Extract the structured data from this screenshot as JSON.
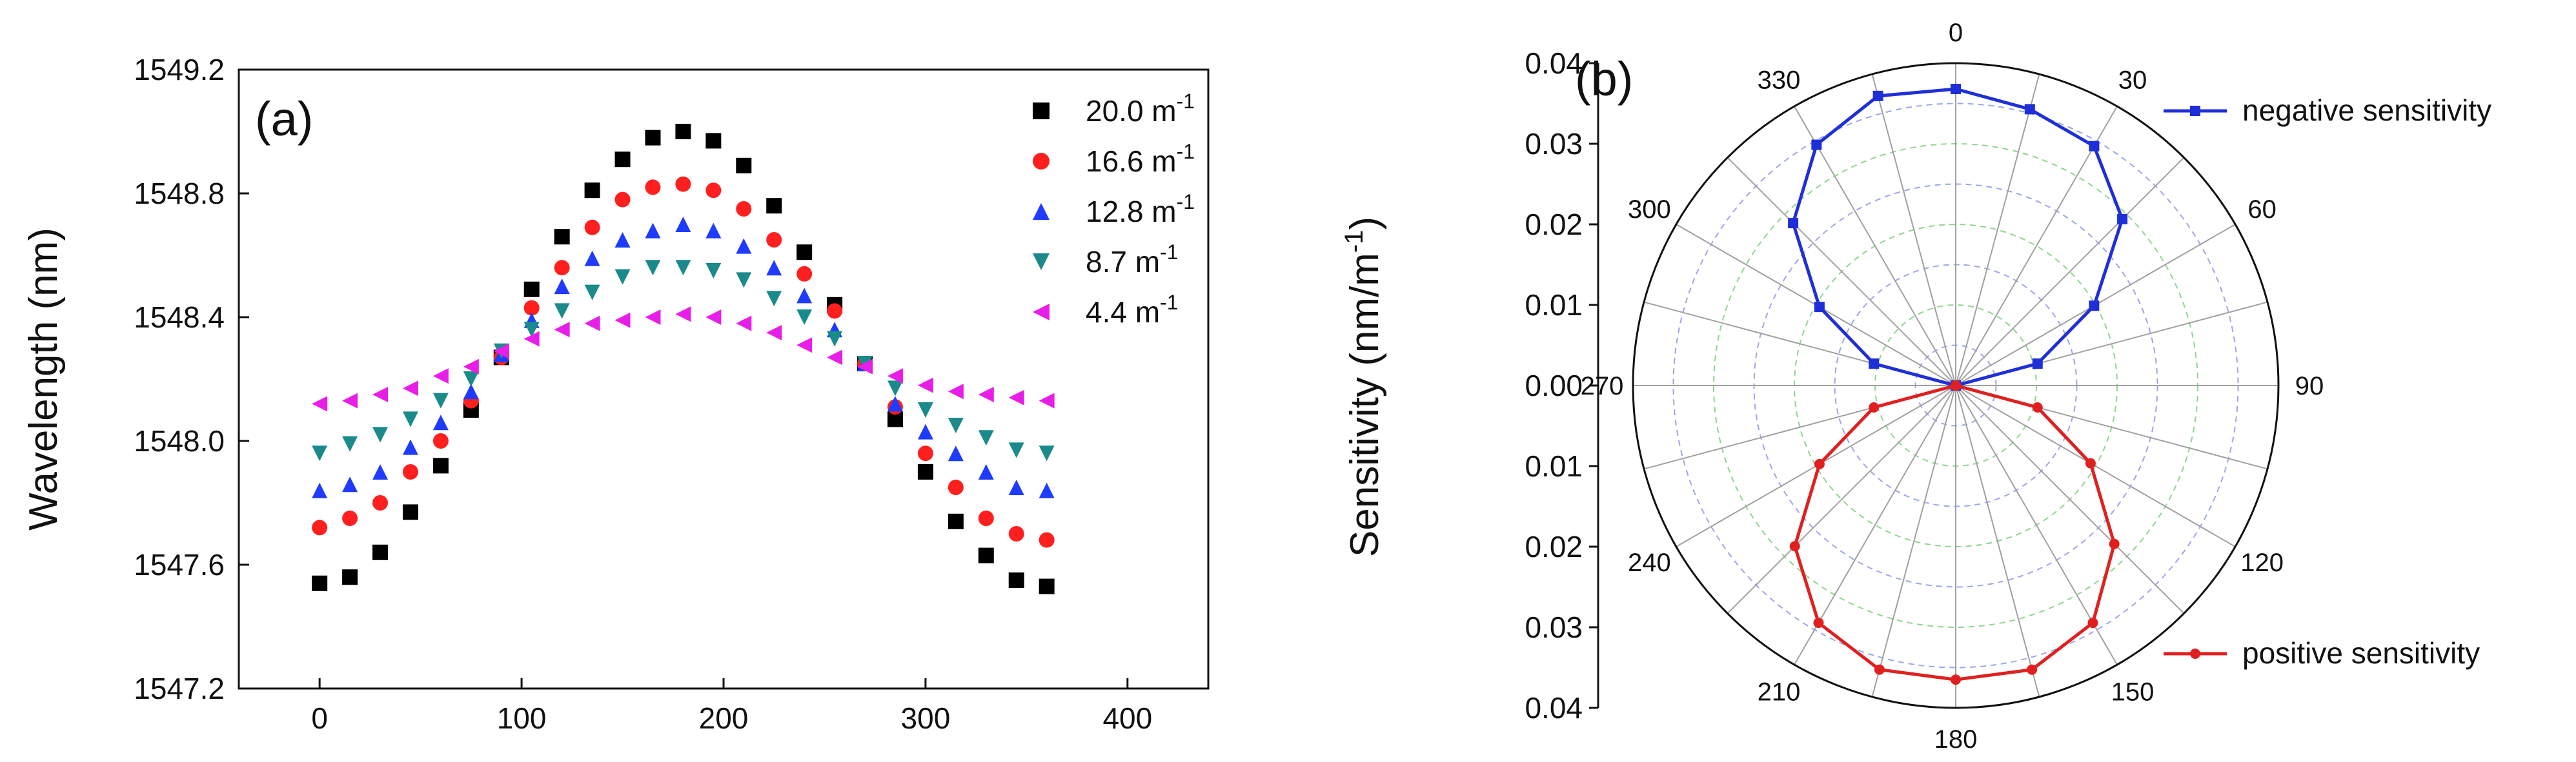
{
  "chart_data": [
    {
      "panel": "(a)",
      "type": "scatter",
      "ylabel": "Wavelength (nm)",
      "xlabel": "",
      "xlim": [
        -40,
        440
      ],
      "ylim": [
        1547.2,
        1549.2
      ],
      "xticks": [
        "0",
        "100",
        "200",
        "300",
        "400"
      ],
      "yticks": [
        "1547.2",
        "1547.6",
        "1548.0",
        "1548.4",
        "1548.8",
        "1549.2"
      ],
      "x": [
        0,
        15,
        30,
        45,
        60,
        75,
        90,
        105,
        120,
        135,
        150,
        165,
        180,
        195,
        210,
        225,
        240,
        255,
        270,
        285,
        300,
        315,
        330,
        345,
        360
      ],
      "series": [
        {
          "name": "20.0 m",
          "sup": "-1",
          "color": "#000000",
          "marker": "square",
          "values": [
            1547.54,
            1547.56,
            1547.64,
            1547.77,
            1547.92,
            1548.1,
            1548.27,
            1548.49,
            1548.66,
            1548.81,
            1548.91,
            1548.98,
            1549.0,
            1548.97,
            1548.89,
            1548.76,
            1548.61,
            1548.44,
            1548.25,
            1548.07,
            1547.9,
            1547.74,
            1547.63,
            1547.55,
            1547.53
          ]
        },
        {
          "name": "16.6 m",
          "sup": "-1",
          "color": "#ff1f1f",
          "marker": "circle",
          "values": [
            1547.72,
            1547.75,
            1547.8,
            1547.9,
            1548.0,
            1548.13,
            1548.27,
            1548.43,
            1548.56,
            1548.69,
            1548.78,
            1548.82,
            1548.83,
            1548.81,
            1548.75,
            1548.65,
            1548.54,
            1548.42,
            1548.25,
            1548.11,
            1547.96,
            1547.85,
            1547.75,
            1547.7,
            1547.68
          ]
        },
        {
          "name": "12.8 m",
          "sup": "-1",
          "color": "#1f3bff",
          "marker": "triangle-up",
          "values": [
            1547.84,
            1547.86,
            1547.9,
            1547.98,
            1548.06,
            1548.16,
            1548.28,
            1548.39,
            1548.5,
            1548.59,
            1548.65,
            1548.68,
            1548.7,
            1548.68,
            1548.63,
            1548.56,
            1548.47,
            1548.36,
            1548.25,
            1548.12,
            1548.03,
            1547.96,
            1547.9,
            1547.85,
            1547.84
          ]
        },
        {
          "name": "8.7 m",
          "sup": "-1",
          "color": "#1a8a8a",
          "marker": "triangle-down",
          "values": [
            1547.96,
            1547.99,
            1548.02,
            1548.07,
            1548.13,
            1548.2,
            1548.29,
            1548.36,
            1548.42,
            1548.48,
            1548.53,
            1548.56,
            1548.56,
            1548.55,
            1548.52,
            1548.46,
            1548.4,
            1548.33,
            1548.25,
            1548.17,
            1548.1,
            1548.05,
            1548.01,
            1547.97,
            1547.96
          ]
        },
        {
          "name": "4.4 m",
          "sup": "-1",
          "color": "#e81ee8",
          "marker": "triangle-left",
          "values": [
            1548.12,
            1548.13,
            1548.15,
            1548.17,
            1548.21,
            1548.24,
            1548.29,
            1548.33,
            1548.36,
            1548.38,
            1548.39,
            1548.4,
            1548.41,
            1548.4,
            1548.38,
            1548.35,
            1548.31,
            1548.27,
            1548.24,
            1548.21,
            1548.18,
            1548.16,
            1548.15,
            1548.14,
            1548.13
          ]
        }
      ]
    },
    {
      "panel": "(b)",
      "type": "polar",
      "ylabel": "Sensitivity (nm/m",
      "ylabel_sup": "-1",
      "ylabel_close": ")",
      "radial_max": 0.04,
      "radial_ticks_upper": [
        "0.04",
        "0.03",
        "0.02",
        "0.01",
        "0.00"
      ],
      "radial_ticks_lower": [
        "0.01",
        "0.02",
        "0.03",
        "0.04"
      ],
      "angle_labels": [
        "0",
        "30",
        "60",
        "90",
        "120",
        "150",
        "180",
        "210",
        "240",
        "270",
        "300",
        "330"
      ],
      "series": [
        {
          "name": "negative sensitivity",
          "color": "#1f2fd8",
          "marker": "square",
          "angles": [
            270,
            285,
            300,
            315,
            330,
            345,
            0,
            15,
            30,
            45,
            60,
            75,
            90
          ],
          "values": [
            0.0,
            0.0105,
            0.0195,
            0.0285,
            0.0345,
            0.0372,
            0.0368,
            0.0355,
            0.0343,
            0.0292,
            0.0198,
            0.0105,
            0.0
          ]
        },
        {
          "name": "positive sensitivity",
          "color": "#e02020",
          "marker": "circle",
          "angles": [
            90,
            105,
            120,
            135,
            150,
            165,
            180,
            195,
            210,
            225,
            240,
            255,
            270
          ],
          "values": [
            0.0,
            0.0105,
            0.0193,
            0.0278,
            0.034,
            0.0365,
            0.0365,
            0.0365,
            0.034,
            0.0282,
            0.0195,
            0.0105,
            0.0
          ]
        }
      ]
    }
  ]
}
